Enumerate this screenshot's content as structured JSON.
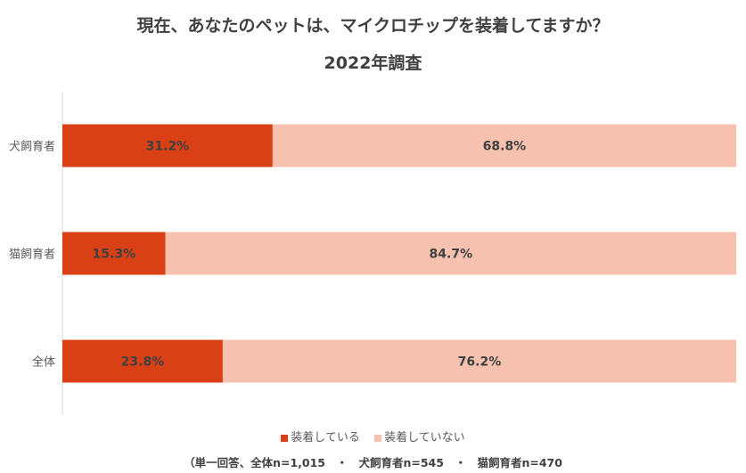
{
  "chart_data": {
    "type": "bar",
    "orientation": "horizontal-stacked-100",
    "title": "現在、あなたのペットは、マイクロチップを装着してますか？",
    "subtitle": "2022年調査",
    "categories": [
      "犬飼育者",
      "猫飼育者",
      "全体"
    ],
    "series": [
      {
        "name": "装着している",
        "color": "#D94015",
        "values": [
          31.2,
          15.3,
          23.8
        ],
        "labels": [
          "31.2%",
          "15.3%",
          "23.8%"
        ]
      },
      {
        "name": "装着していない",
        "color": "#F6C1AE",
        "values": [
          68.8,
          84.7,
          76.2
        ],
        "labels": [
          "68.8%",
          "84.7%",
          "76.2%"
        ]
      }
    ],
    "xlim": [
      0,
      100
    ],
    "grid": false,
    "legend_position": "bottom",
    "note": "（単一回答、全体n=1,015　・　犬飼育者n=545　・　猫飼育者n=470"
  }
}
